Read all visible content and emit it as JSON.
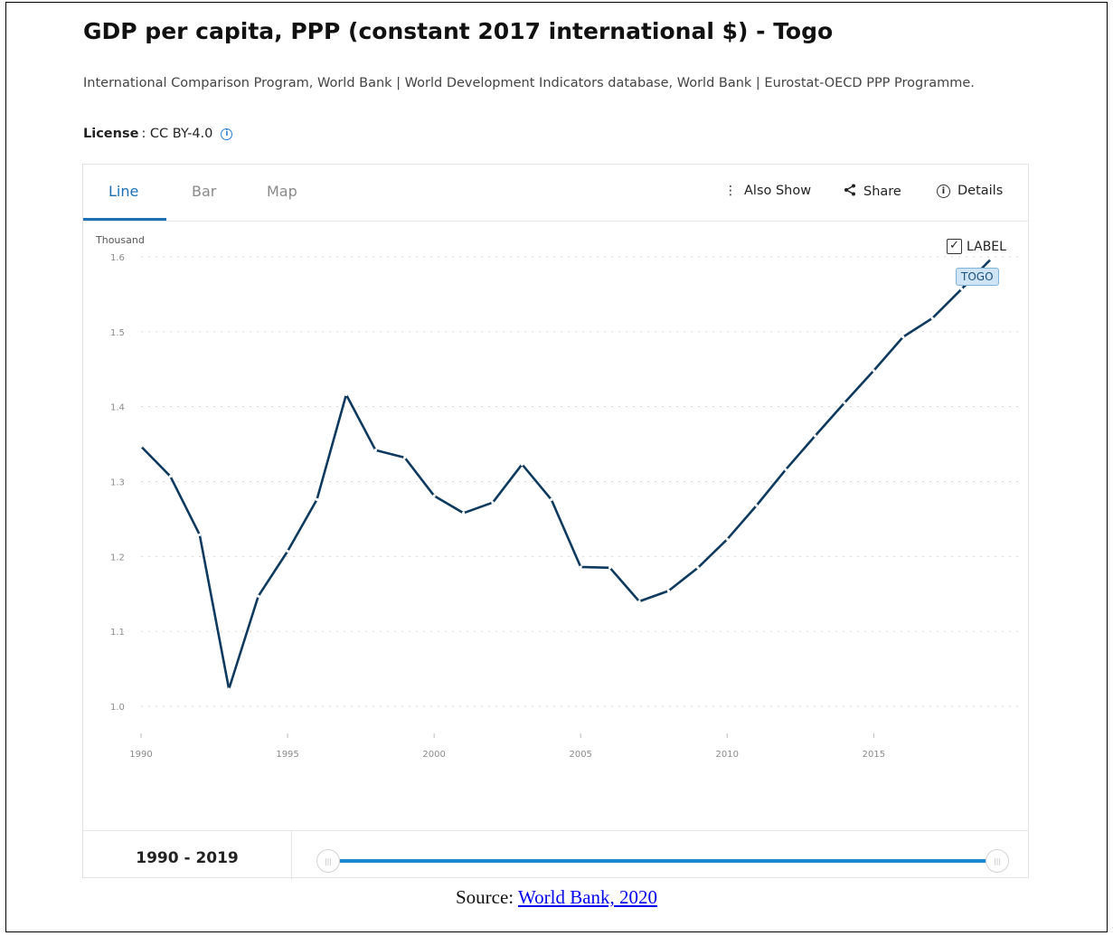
{
  "header": {
    "title": "GDP per capita, PPP (constant 2017 international $) - Togo",
    "sources": "International Comparison Program, World Bank | World Development Indicators database, World Bank | Eurostat-OECD PPP Programme.",
    "license_label": "License",
    "license_value": ": CC BY-4.0",
    "license_icon": "info-icon"
  },
  "tabs": [
    {
      "label": "Line",
      "active": true
    },
    {
      "label": "Bar",
      "active": false
    },
    {
      "label": "Map",
      "active": false
    }
  ],
  "toolbar": {
    "also_show": "Also Show",
    "share": "Share",
    "details": "Details",
    "icons": [
      "kebab-icon",
      "share-icon",
      "info-icon"
    ]
  },
  "legend": {
    "checkbox_label": "LABEL",
    "checked": true,
    "series_tag": "TOGO"
  },
  "range": {
    "label": "1990 - 2019",
    "start": 1990,
    "end": 2019
  },
  "footer": {
    "source_prefix": "Source:",
    "source_link": "World Bank, 2020"
  },
  "colors": {
    "line": "#0d3a5e",
    "accent": "#1b6fb4",
    "slider": "#1b8ad0"
  },
  "chart_data": {
    "type": "line",
    "title": "",
    "xlabel": "",
    "ylabel": "Thousand",
    "ylim": [
      1.0,
      1.6
    ],
    "xlim": [
      1990,
      2019
    ],
    "yticks": [
      "1.0",
      "1.1",
      "1.2",
      "1.3",
      "1.4",
      "1.5",
      "1.6"
    ],
    "xticks": [
      "1990",
      "1995",
      "2000",
      "2005",
      "2010",
      "2015"
    ],
    "grid": true,
    "series": [
      {
        "name": "TOGO",
        "x": [
          1990,
          1991,
          1992,
          1993,
          1994,
          1995,
          1996,
          1997,
          1998,
          1999,
          2000,
          2001,
          2002,
          2003,
          2004,
          2005,
          2006,
          2007,
          2008,
          2009,
          2010,
          2011,
          2012,
          2013,
          2014,
          2015,
          2016,
          2017,
          2018,
          2019
        ],
        "values": [
          1.347,
          1.307,
          1.229,
          1.023,
          1.147,
          1.207,
          1.276,
          1.416,
          1.342,
          1.332,
          1.281,
          1.258,
          1.272,
          1.323,
          1.276,
          1.186,
          1.185,
          1.14,
          1.154,
          1.185,
          1.223,
          1.268,
          1.316,
          1.361,
          1.405,
          1.448,
          1.493,
          1.518,
          1.557,
          1.597
        ]
      }
    ]
  }
}
